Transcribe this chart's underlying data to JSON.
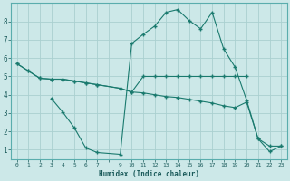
{
  "title": "",
  "xlabel": "Humidex (Indice chaleur)",
  "bg_color": "#cce8e8",
  "grid_color": "#aad0d0",
  "line_color": "#1a7a6e",
  "yticks": [
    1,
    2,
    3,
    4,
    5,
    6,
    7,
    8
  ],
  "xlim": [
    -0.5,
    23.5
  ],
  "ylim": [
    0.5,
    9.0
  ],
  "line1_x": [
    0,
    1,
    2,
    3,
    4,
    5,
    6,
    7,
    9,
    10,
    11,
    12,
    13,
    14,
    15,
    16,
    17,
    18,
    19,
    20
  ],
  "line1_y": [
    5.7,
    5.3,
    4.9,
    4.85,
    4.85,
    4.75,
    4.65,
    4.55,
    4.35,
    4.15,
    5.0,
    5.0,
    5.0,
    5.0,
    5.0,
    5.0,
    5.0,
    5.0,
    5.0,
    5.0
  ],
  "line2_x": [
    0,
    1,
    2,
    3,
    4,
    5,
    6,
    7,
    9,
    10,
    11,
    12,
    13,
    14,
    15,
    16,
    17,
    18,
    19,
    20,
    21,
    22,
    23
  ],
  "line2_y": [
    5.7,
    5.3,
    4.9,
    4.85,
    4.85,
    4.75,
    4.65,
    4.55,
    4.35,
    4.15,
    4.1,
    4.0,
    3.9,
    3.85,
    3.75,
    3.65,
    3.55,
    3.4,
    3.3,
    3.6,
    1.6,
    1.2,
    1.2
  ],
  "line3_x": [
    3,
    4,
    5,
    6,
    7,
    9,
    10,
    11,
    12,
    13,
    14,
    15,
    16,
    17,
    18,
    19,
    20,
    21,
    22,
    23
  ],
  "line3_y": [
    3.8,
    3.05,
    2.2,
    1.1,
    0.85,
    0.75,
    6.8,
    7.3,
    7.75,
    8.5,
    8.65,
    8.05,
    7.6,
    8.5,
    6.5,
    5.5,
    3.7,
    1.6,
    0.9,
    1.2
  ]
}
